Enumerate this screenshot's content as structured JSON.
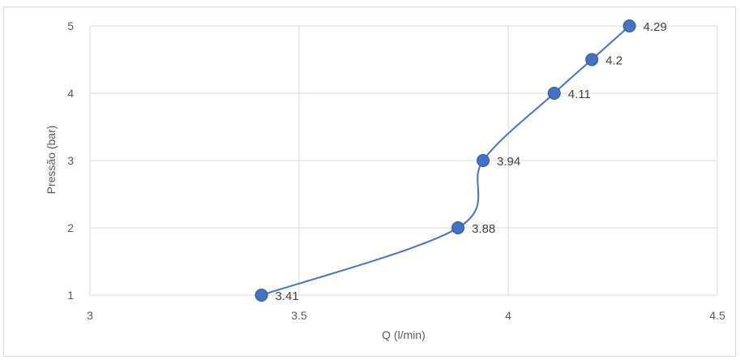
{
  "chart_data": {
    "type": "scatter",
    "title": "",
    "xlabel": "Q (l/min)",
    "ylabel": "Pressão (bar)",
    "xlim": [
      3,
      4.5
    ],
    "ylim": [
      1,
      5
    ],
    "x_ticks": [
      "3",
      "3.5",
      "4",
      "4.5"
    ],
    "y_ticks": [
      "1",
      "2",
      "3",
      "4",
      "5"
    ],
    "grid": true,
    "legend": "none",
    "line_style": "smoothed",
    "series": [
      {
        "color": "#4472C4",
        "points": [
          {
            "x": 3.41,
            "y": 1,
            "label": "3.41"
          },
          {
            "x": 3.88,
            "y": 2,
            "label": "3.88"
          },
          {
            "x": 3.94,
            "y": 3,
            "label": "3.94"
          },
          {
            "x": 4.11,
            "y": 4,
            "label": "4.11"
          },
          {
            "x": 4.2,
            "y": 4.5,
            "label": "4.2"
          },
          {
            "x": 4.29,
            "y": 5,
            "label": "4.29"
          }
        ]
      }
    ]
  }
}
